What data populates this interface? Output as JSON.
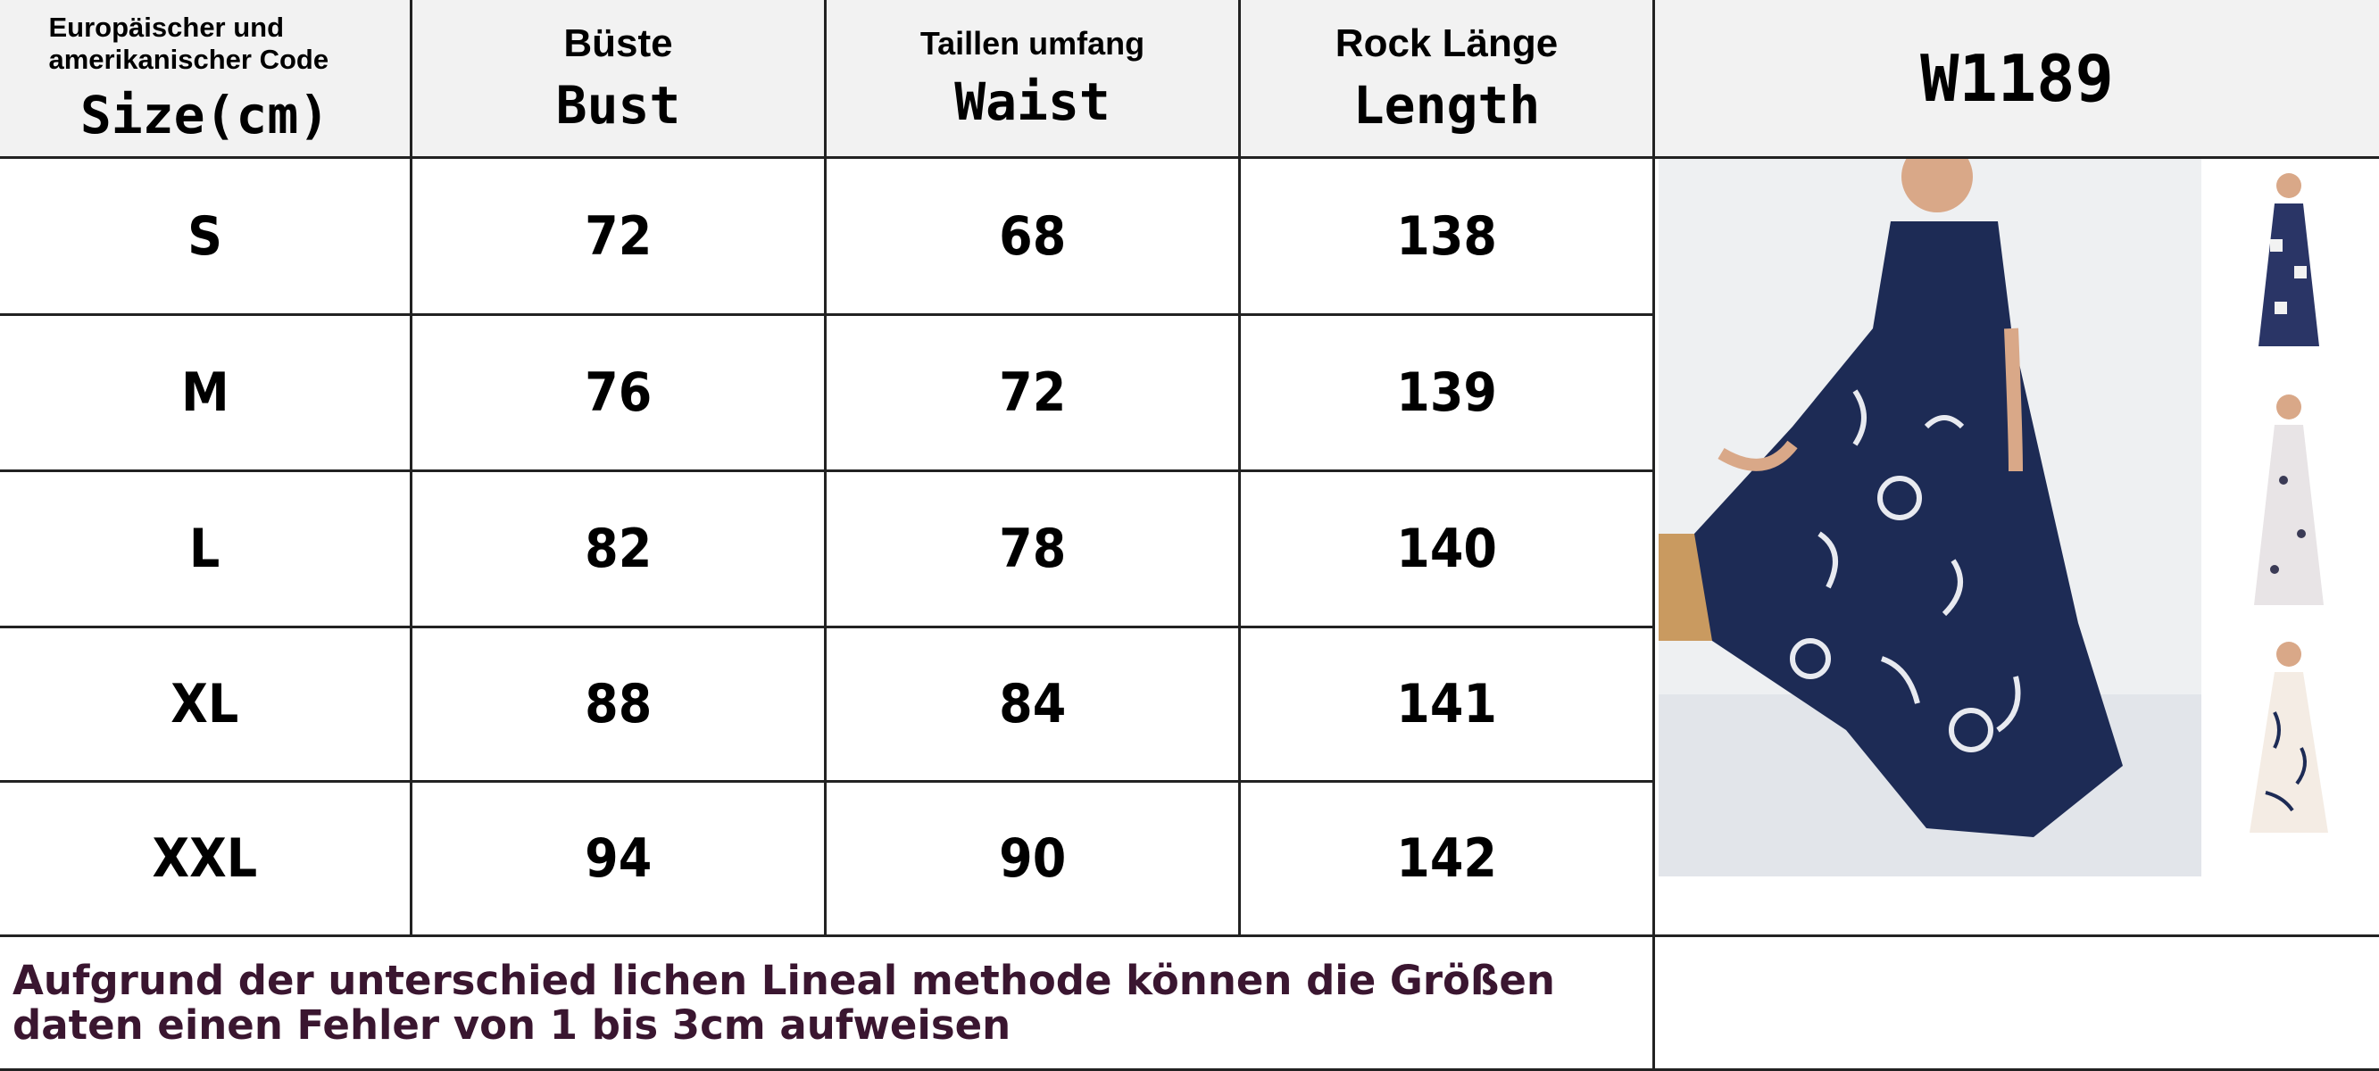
{
  "header": {
    "columns": [
      {
        "top": "Europäischer und amerikanischer Code",
        "bottom": "Size(cm)"
      },
      {
        "top": "Büste",
        "bottom": "Bust"
      },
      {
        "top": "Taillen umfang",
        "bottom": "Waist"
      },
      {
        "top": "Rock Länge",
        "bottom": "Length"
      }
    ],
    "model": "W1189"
  },
  "table": {
    "rows": [
      [
        "S",
        72,
        68,
        138
      ],
      [
        "M",
        76,
        72,
        139
      ],
      [
        "L",
        82,
        78,
        140
      ],
      [
        "XL",
        88,
        84,
        141
      ],
      [
        "XXL",
        94,
        90,
        142
      ]
    ]
  },
  "footer": {
    "note": [
      "Aufgrund der unterschied lichen Lineal methode können die Größen",
      "daten einen Fehler von 1 bis 3cm aufweisen"
    ]
  }
}
